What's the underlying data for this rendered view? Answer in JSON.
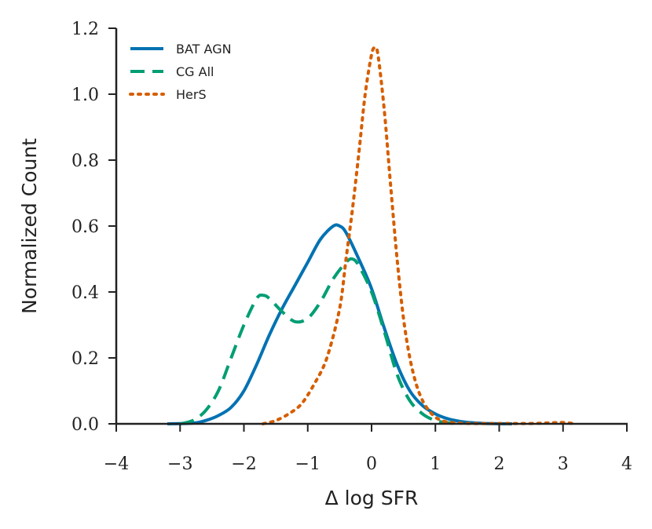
{
  "chart_data": {
    "type": "line",
    "title": "",
    "xlabel": "Δ log SFR",
    "ylabel": "Normalized Count",
    "xlim": [
      -4,
      4
    ],
    "ylim": [
      0,
      1.2
    ],
    "xticks": [
      -4,
      -3,
      -2,
      -1,
      0,
      1,
      2,
      3,
      4
    ],
    "xtick_labels": [
      "−4",
      "−3",
      "−2",
      "−1",
      "0",
      "1",
      "2",
      "3",
      "4"
    ],
    "yticks": [
      0.0,
      0.2,
      0.4,
      0.6,
      0.8,
      1.0,
      1.2
    ],
    "ytick_labels": [
      "0.0",
      "0.2",
      "0.4",
      "0.6",
      "0.8",
      "1.0",
      "1.2"
    ],
    "legend_position": "top-left",
    "series": [
      {
        "name": "BAT AGN",
        "color": "#0072b2",
        "style": "solid",
        "x": [
          -3.2,
          -2.8,
          -2.6,
          -2.4,
          -2.2,
          -2.0,
          -1.8,
          -1.6,
          -1.4,
          -1.2,
          -1.0,
          -0.8,
          -0.6,
          -0.5,
          -0.4,
          -0.2,
          0.0,
          0.2,
          0.4,
          0.6,
          0.8,
          1.0,
          1.2,
          1.4,
          1.6,
          1.8,
          2.2
        ],
        "y": [
          0.0,
          0.002,
          0.01,
          0.025,
          0.05,
          0.1,
          0.18,
          0.27,
          0.35,
          0.42,
          0.49,
          0.56,
          0.6,
          0.6,
          0.58,
          0.5,
          0.41,
          0.29,
          0.18,
          0.1,
          0.055,
          0.03,
          0.015,
          0.007,
          0.003,
          0.001,
          0.0
        ]
      },
      {
        "name": "CG All",
        "color": "#009e73",
        "style": "dashed",
        "x": [
          -3.0,
          -2.8,
          -2.6,
          -2.4,
          -2.2,
          -2.0,
          -1.8,
          -1.7,
          -1.6,
          -1.4,
          -1.2,
          -1.0,
          -0.8,
          -0.6,
          -0.4,
          -0.3,
          -0.2,
          0.0,
          0.2,
          0.4,
          0.6,
          0.8,
          1.0,
          1.2,
          1.4
        ],
        "y": [
          0.0,
          0.01,
          0.04,
          0.1,
          0.2,
          0.3,
          0.38,
          0.39,
          0.38,
          0.34,
          0.31,
          0.32,
          0.37,
          0.44,
          0.49,
          0.5,
          0.48,
          0.4,
          0.28,
          0.15,
          0.07,
          0.03,
          0.01,
          0.003,
          0.0
        ]
      },
      {
        "name": "HerS",
        "color": "#d55e00",
        "style": "dotted",
        "x": [
          -1.7,
          -1.5,
          -1.3,
          -1.1,
          -0.9,
          -0.7,
          -0.5,
          -0.4,
          -0.3,
          -0.2,
          -0.1,
          0.0,
          0.05,
          0.1,
          0.2,
          0.3,
          0.4,
          0.5,
          0.6,
          0.7,
          0.8,
          0.9,
          1.0,
          1.1,
          1.2,
          1.4,
          1.6,
          2.0,
          2.5,
          2.8,
          3.0,
          3.2
        ],
        "y": [
          0.0,
          0.01,
          0.03,
          0.06,
          0.12,
          0.2,
          0.35,
          0.5,
          0.65,
          0.82,
          1.0,
          1.12,
          1.14,
          1.12,
          0.95,
          0.72,
          0.5,
          0.32,
          0.2,
          0.12,
          0.07,
          0.04,
          0.02,
          0.01,
          0.005,
          0.002,
          0.001,
          0.001,
          0.001,
          0.003,
          0.004,
          0.0
        ]
      }
    ]
  }
}
